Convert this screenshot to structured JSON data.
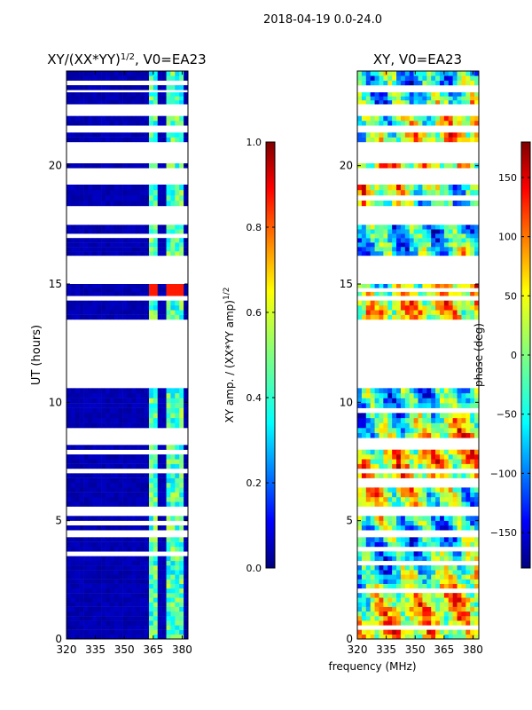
{
  "figure": {
    "suptitle": "2018-04-19 0.0-24.0",
    "shared_xlabel": "frequency (MHz)"
  },
  "chart_data": [
    {
      "type": "heatmap",
      "title": "XY/(XX*YY)",
      "title_exponent": "1/2",
      "title_suffix": ", V0=EA23",
      "xlabel": "",
      "ylabel": "UT (hours)",
      "xlim": [
        320,
        383
      ],
      "ylim": [
        0,
        24
      ],
      "xticks": [
        "320",
        "335",
        "350",
        "365",
        "380"
      ],
      "xtick_values": [
        320,
        335,
        350,
        365,
        380
      ],
      "yticks": [
        "0",
        "5",
        "10",
        "15",
        "20"
      ],
      "ytick_values": [
        0,
        5,
        10,
        15,
        20
      ],
      "colorbar": {
        "label": "XY amp. / (XX*YY amp)",
        "label_exponent": "1/2",
        "vmin": 0.0,
        "vmax": 1.0,
        "ticks": [
          "0.0",
          "0.2",
          "0.4",
          "0.6",
          "0.8",
          "1.0"
        ],
        "tick_values": [
          0.0,
          0.2,
          0.4,
          0.6,
          0.8,
          1.0
        ]
      },
      "data_blocks_ut": [
        [
          0.0,
          3.5
        ],
        [
          3.5,
          4.3
        ],
        [
          4.6,
          5.2
        ],
        [
          5.6,
          7.0
        ],
        [
          7.2,
          8.2
        ],
        [
          8.5,
          10.6
        ],
        [
          13.5,
          14.3
        ],
        [
          14.5,
          15.0
        ],
        [
          16.2,
          17.5
        ],
        [
          18.3,
          19.2
        ],
        [
          19.9,
          20.1
        ],
        [
          21.0,
          21.4
        ],
        [
          21.7,
          22.3
        ],
        [
          22.6,
          23.1
        ],
        [
          23.2,
          24.0
        ]
      ],
      "dominant_value": 0.03,
      "high_channel_band_mhz": [
        362,
        380
      ],
      "high_channel_value": 0.45,
      "peak_ut": [
        14.5,
        15.0
      ],
      "peak_value": 0.85
    },
    {
      "type": "heatmap",
      "title": "XY, V0=EA23",
      "xlabel": "",
      "ylabel": "",
      "xlim": [
        320,
        383
      ],
      "ylim": [
        0,
        24
      ],
      "xticks": [
        "320",
        "335",
        "350",
        "365",
        "380"
      ],
      "xtick_values": [
        320,
        335,
        350,
        365,
        380
      ],
      "yticks": [
        "0",
        "5",
        "10",
        "15",
        "20"
      ],
      "ytick_values": [
        0,
        5,
        10,
        15,
        20
      ],
      "colorbar": {
        "label": "phase (deg)",
        "vmin": -180,
        "vmax": 180,
        "ticks": [
          "150",
          "100",
          "50",
          "0",
          "−50",
          "−100",
          "−150"
        ],
        "tick_values": [
          150,
          100,
          50,
          0,
          -50,
          -100,
          -150
        ]
      },
      "data_blocks_ut": [
        [
          0.0,
          3.5
        ],
        [
          3.5,
          4.3
        ],
        [
          4.6,
          5.2
        ],
        [
          5.6,
          7.0
        ],
        [
          7.2,
          8.2
        ],
        [
          8.5,
          10.6
        ],
        [
          13.5,
          14.3
        ],
        [
          14.5,
          15.0
        ],
        [
          16.2,
          17.5
        ],
        [
          18.3,
          19.2
        ],
        [
          19.9,
          20.1
        ],
        [
          21.0,
          21.4
        ],
        [
          21.7,
          22.3
        ],
        [
          22.6,
          23.1
        ],
        [
          23.2,
          24.0
        ]
      ],
      "phase_range_deg": [
        -180,
        180
      ]
    }
  ],
  "colors": {
    "colormap": [
      "#00007f",
      "#0000ff",
      "#007fff",
      "#00ffff",
      "#7fff7f",
      "#ffff00",
      "#ff7f00",
      "#ff0000",
      "#7f0000"
    ],
    "frame": "#000000",
    "background": "#ffffff"
  }
}
